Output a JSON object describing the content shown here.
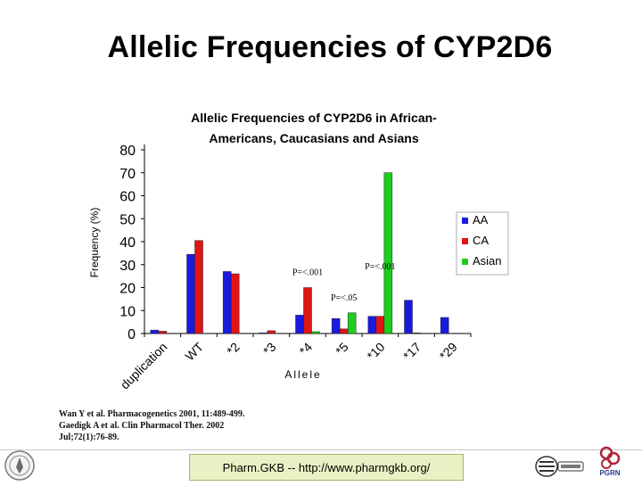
{
  "slide": {
    "title": "Allelic Frequencies of CYP2D6",
    "footer": "Pharm.GKB -- http://www.pharmgkb.org/",
    "logo_text": "PGRN"
  },
  "references": [
    "Wan Y et al. Pharmacogenetics 2001, 11:489-499.",
    "Gaedigk A et al. Clin Pharmacol Ther. 2002",
    "Jul;72(1):76-89."
  ],
  "colors": {
    "AA": "#1a1adf",
    "CA": "#e01414",
    "Asian": "#1ccf1c"
  },
  "chart_data": {
    "type": "bar",
    "title_lines": [
      "Allelic Frequencies of CYP2D6 in African-",
      "Americans, Caucasians and Asians"
    ],
    "xlabel": "Allele",
    "ylabel": "Frequency (%)",
    "ylim": [
      0,
      80
    ],
    "yticks": [
      0,
      10,
      20,
      30,
      40,
      50,
      60,
      70,
      80
    ],
    "categories": [
      "duplication",
      "WT",
      "*2",
      "*3",
      "*4",
      "*5",
      "*10",
      "*17",
      "*29"
    ],
    "series": [
      {
        "name": "AA",
        "color": "#1a1adf",
        "values": [
          1.5,
          34.5,
          27,
          0.3,
          8,
          6.5,
          7.5,
          14.5,
          7
        ]
      },
      {
        "name": "CA",
        "color": "#e01414",
        "values": [
          1,
          40.5,
          26,
          1.2,
          20,
          2,
          7.5,
          0.3,
          0
        ]
      },
      {
        "name": "Asian",
        "color": "#1ccf1c",
        "values": [
          0,
          0,
          0,
          0,
          0.8,
          9,
          70,
          0,
          0
        ]
      }
    ],
    "legend_placement": "right",
    "annotations": [
      {
        "category": "*4",
        "text": "P=<.001"
      },
      {
        "category": "*5",
        "text": "P=<.05"
      },
      {
        "category": "*10",
        "text": "P=<.001"
      }
    ]
  }
}
